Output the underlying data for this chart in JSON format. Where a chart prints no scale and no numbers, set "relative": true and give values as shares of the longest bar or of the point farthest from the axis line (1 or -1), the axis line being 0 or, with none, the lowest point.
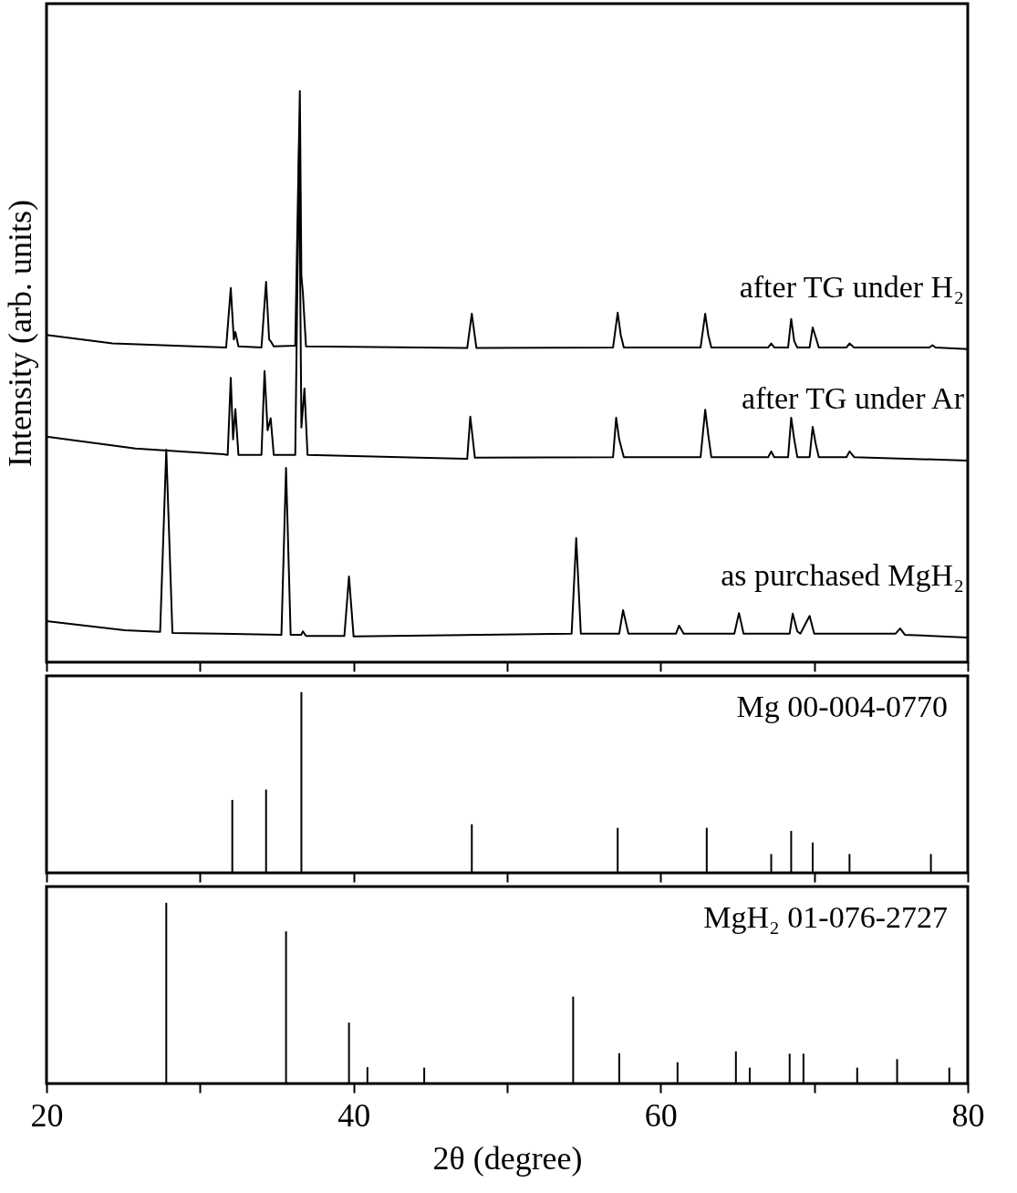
{
  "chart_data": [
    {
      "type": "line",
      "relative": true,
      "ylabel": "Intensity (arb. units)",
      "xlim": [
        20,
        80
      ],
      "xticks": [
        20,
        {
          "value": 30,
          "label": null
        },
        40,
        {
          "value": 50,
          "label": null
        },
        60,
        {
          "value": 70,
          "label": null
        },
        80
      ],
      "tick_labels": false,
      "grid": false,
      "series": [
        {
          "name": "after TG under H₂",
          "color": "#000000",
          "x": [
            20,
            24.3,
            29.6,
            31.7,
            32.0,
            32.2,
            32.3,
            32.5,
            34.0,
            34.3,
            34.5,
            34.6,
            34.8,
            36.2,
            36.5,
            36.6,
            36.7,
            36.9,
            47.4,
            47.7,
            48.0,
            56.9,
            57.2,
            57.4,
            57.6,
            62.6,
            62.9,
            63.1,
            63.3,
            67.0,
            67.2,
            67.4,
            68.3,
            68.5,
            68.7,
            68.9,
            69.7,
            69.9,
            70.1,
            70.3,
            72.1,
            72.3,
            72.6,
            77.5,
            77.7,
            77.9,
            80
          ],
          "values": [
            0.573,
            0.558,
            0.553,
            0.551,
            0.655,
            0.565,
            0.578,
            0.553,
            0.551,
            0.666,
            0.565,
            0.562,
            0.553,
            0.554,
            1,
            0.677,
            0.645,
            0.553,
            0.55,
            0.61,
            0.55,
            0.551,
            0.612,
            0.573,
            0.551,
            0.551,
            0.61,
            0.573,
            0.551,
            0.551,
            0.558,
            0.551,
            0.551,
            0.601,
            0.562,
            0.551,
            0.551,
            0.586,
            0.569,
            0.551,
            0.551,
            0.558,
            0.551,
            0.551,
            0.555,
            0.551,
            0.548
          ]
        },
        {
          "name": "after TG under Ar",
          "color": "#000000",
          "x": [
            20,
            25.8,
            31.5,
            31.8,
            32.0,
            32.15,
            32.3,
            32.5,
            34.0,
            34.2,
            34.4,
            34.6,
            34.8,
            36.2,
            36.45,
            36.6,
            36.8,
            37.0,
            47.4,
            47.6,
            47.9,
            56.9,
            57.1,
            57.3,
            57.6,
            62.6,
            62.9,
            63.1,
            63.3,
            67.0,
            67.2,
            67.4,
            68.3,
            68.5,
            68.7,
            68.9,
            69.7,
            69.9,
            70.1,
            70.3,
            72.1,
            72.3,
            72.6,
            80
          ],
          "values": [
            0.395,
            0.374,
            0.364,
            0.363,
            0.498,
            0.39,
            0.443,
            0.363,
            0.363,
            0.51,
            0.406,
            0.427,
            0.363,
            0.363,
            0.903,
            0.411,
            0.479,
            0.363,
            0.356,
            0.43,
            0.358,
            0.359,
            0.428,
            0.39,
            0.359,
            0.359,
            0.442,
            0.398,
            0.359,
            0.359,
            0.369,
            0.359,
            0.359,
            0.428,
            0.39,
            0.359,
            0.359,
            0.412,
            0.382,
            0.359,
            0.359,
            0.369,
            0.359,
            0.353
          ]
        },
        {
          "name": "as purchased MgH₂",
          "color": "#000000",
          "x": [
            20,
            25.1,
            27.4,
            27.8,
            28.2,
            35.3,
            35.6,
            35.9,
            36.6,
            36.7,
            36.9,
            39.4,
            39.7,
            40.0,
            54.2,
            54.5,
            54.8,
            57.3,
            57.55,
            57.9,
            61.0,
            61.2,
            61.5,
            64.8,
            65.1,
            65.4,
            68.4,
            68.6,
            68.9,
            69.1,
            69.7,
            70.0,
            75.3,
            75.6,
            75.9,
            80
          ],
          "values": [
            0.072,
            0.056,
            0.053,
            0.372,
            0.051,
            0.048,
            0.34,
            0.048,
            0.048,
            0.054,
            0.046,
            0.046,
            0.15,
            0.045,
            0.05,
            0.217,
            0.05,
            0.05,
            0.091,
            0.05,
            0.05,
            0.064,
            0.05,
            0.05,
            0.086,
            0.05,
            0.05,
            0.085,
            0.054,
            0.05,
            0.081,
            0.05,
            0.05,
            0.059,
            0.048,
            0.043
          ]
        }
      ]
    },
    {
      "type": "bar",
      "relative": true,
      "xlim": [
        20,
        80
      ],
      "xticks": [
        20,
        {
          "value": 30,
          "label": null
        },
        40,
        {
          "value": 50,
          "label": null
        },
        60,
        {
          "value": 70,
          "label": null
        },
        80
      ],
      "tick_labels": false,
      "grid": false,
      "annotations": [
        "Mg 00-004-0770"
      ],
      "x": [
        32.1,
        34.3,
        36.6,
        47.7,
        57.2,
        63.0,
        67.2,
        68.5,
        69.9,
        72.3,
        77.6
      ],
      "series": [
        {
          "color": "#000000",
          "values": [
            0.404,
            0.461,
            1,
            0.269,
            0.249,
            0.249,
            0.104,
            0.232,
            0.168,
            0.104,
            0.104
          ]
        }
      ]
    },
    {
      "type": "bar",
      "relative": true,
      "xlabel": "2θ (degree)",
      "xlim": [
        20,
        80
      ],
      "xticks": [
        20,
        {
          "value": 30,
          "label": null
        },
        40,
        {
          "value": 50,
          "label": null
        },
        60,
        {
          "value": 70,
          "label": null
        },
        80
      ],
      "tick_labels": "x",
      "grid": false,
      "annotations": [
        "MgH₂ 01-076-2727"
      ],
      "x": [
        27.8,
        35.6,
        39.7,
        40.9,
        44.6,
        54.3,
        57.3,
        61.1,
        64.9,
        65.8,
        68.4,
        69.3,
        72.8,
        75.4,
        78.8
      ],
      "series": [
        {
          "color": "#000000",
          "values": [
            1,
            0.842,
            0.337,
            0.091,
            0.088,
            0.481,
            0.168,
            0.118,
            0.178,
            0.088,
            0.165,
            0.165,
            0.088,
            0.135,
            0.088
          ]
        }
      ]
    }
  ]
}
